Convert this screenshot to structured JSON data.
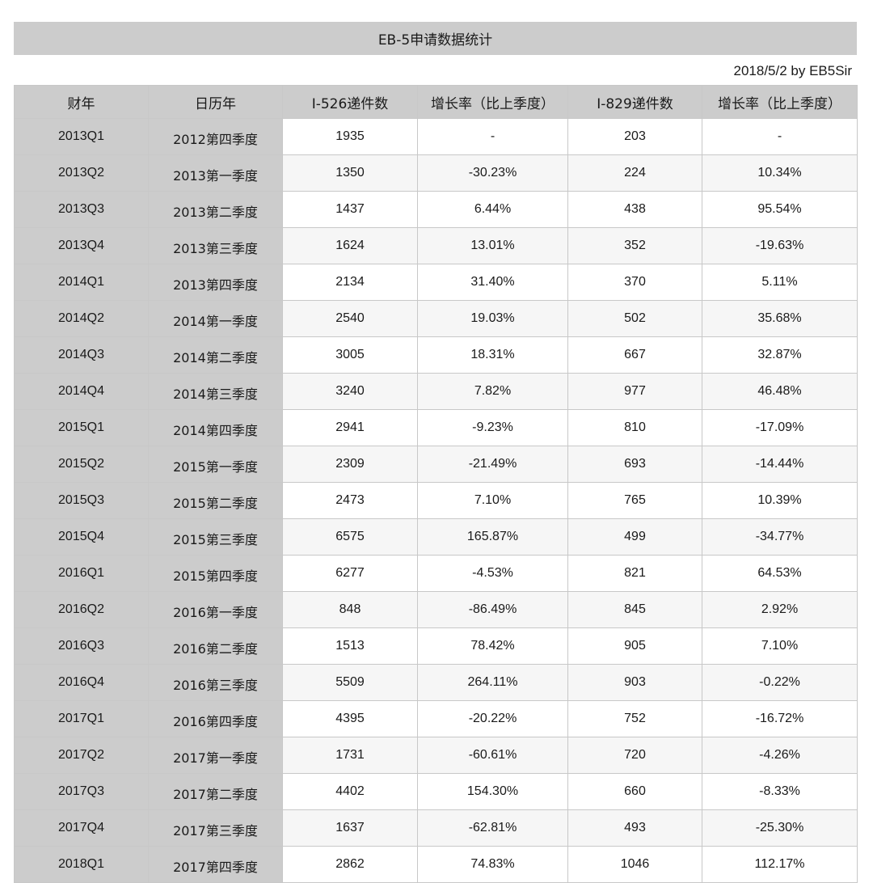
{
  "title": "EB-5申请数据统计",
  "byline": "2018/5/2 by EB5Sir",
  "columns": [
    "财年",
    "日历年",
    "I-526递件数",
    "增长率（比上季度）",
    "I-829递件数",
    "增长率（比上季度）"
  ],
  "rows": [
    {
      "fiscal": "2013Q1",
      "calendar": "2012第四季度",
      "i526": "1935",
      "i526_growth": "-",
      "i829": "203",
      "i829_growth": "-"
    },
    {
      "fiscal": "2013Q2",
      "calendar": "2013第一季度",
      "i526": "1350",
      "i526_growth": "-30.23%",
      "i829": "224",
      "i829_growth": "10.34%"
    },
    {
      "fiscal": "2013Q3",
      "calendar": "2013第二季度",
      "i526": "1437",
      "i526_growth": "6.44%",
      "i829": "438",
      "i829_growth": "95.54%"
    },
    {
      "fiscal": "2013Q4",
      "calendar": "2013第三季度",
      "i526": "1624",
      "i526_growth": "13.01%",
      "i829": "352",
      "i829_growth": "-19.63%"
    },
    {
      "fiscal": "2014Q1",
      "calendar": "2013第四季度",
      "i526": "2134",
      "i526_growth": "31.40%",
      "i829": "370",
      "i829_growth": "5.11%"
    },
    {
      "fiscal": "2014Q2",
      "calendar": "2014第一季度",
      "i526": "2540",
      "i526_growth": "19.03%",
      "i829": "502",
      "i829_growth": "35.68%"
    },
    {
      "fiscal": "2014Q3",
      "calendar": "2014第二季度",
      "i526": "3005",
      "i526_growth": "18.31%",
      "i829": "667",
      "i829_growth": "32.87%"
    },
    {
      "fiscal": "2014Q4",
      "calendar": "2014第三季度",
      "i526": "3240",
      "i526_growth": "7.82%",
      "i829": "977",
      "i829_growth": "46.48%"
    },
    {
      "fiscal": "2015Q1",
      "calendar": "2014第四季度",
      "i526": "2941",
      "i526_growth": "-9.23%",
      "i829": "810",
      "i829_growth": "-17.09%"
    },
    {
      "fiscal": "2015Q2",
      "calendar": "2015第一季度",
      "i526": "2309",
      "i526_growth": "-21.49%",
      "i829": "693",
      "i829_growth": "-14.44%"
    },
    {
      "fiscal": "2015Q3",
      "calendar": "2015第二季度",
      "i526": "2473",
      "i526_growth": "7.10%",
      "i829": "765",
      "i829_growth": "10.39%"
    },
    {
      "fiscal": "2015Q4",
      "calendar": "2015第三季度",
      "i526": "6575",
      "i526_growth": "165.87%",
      "i829": "499",
      "i829_growth": "-34.77%"
    },
    {
      "fiscal": "2016Q1",
      "calendar": "2015第四季度",
      "i526": "6277",
      "i526_growth": "-4.53%",
      "i829": "821",
      "i829_growth": "64.53%"
    },
    {
      "fiscal": "2016Q2",
      "calendar": "2016第一季度",
      "i526": "848",
      "i526_growth": "-86.49%",
      "i829": "845",
      "i829_growth": "2.92%"
    },
    {
      "fiscal": "2016Q3",
      "calendar": "2016第二季度",
      "i526": "1513",
      "i526_growth": "78.42%",
      "i829": "905",
      "i829_growth": "7.10%"
    },
    {
      "fiscal": "2016Q4",
      "calendar": "2016第三季度",
      "i526": "5509",
      "i526_growth": "264.11%",
      "i829": "903",
      "i829_growth": "-0.22%"
    },
    {
      "fiscal": "2017Q1",
      "calendar": "2016第四季度",
      "i526": "4395",
      "i526_growth": "-20.22%",
      "i829": "752",
      "i829_growth": "-16.72%"
    },
    {
      "fiscal": "2017Q2",
      "calendar": "2017第一季度",
      "i526": "1731",
      "i526_growth": "-60.61%",
      "i829": "720",
      "i829_growth": "-4.26%"
    },
    {
      "fiscal": "2017Q3",
      "calendar": "2017第二季度",
      "i526": "4402",
      "i526_growth": "154.30%",
      "i829": "660",
      "i829_growth": "-8.33%"
    },
    {
      "fiscal": "2017Q4",
      "calendar": "2017第三季度",
      "i526": "1637",
      "i526_growth": "-62.81%",
      "i829": "493",
      "i829_growth": "-25.30%"
    },
    {
      "fiscal": "2018Q1",
      "calendar": "2017第四季度",
      "i526": "2862",
      "i526_growth": "74.83%",
      "i829": "1046",
      "i829_growth": "112.17%"
    }
  ]
}
